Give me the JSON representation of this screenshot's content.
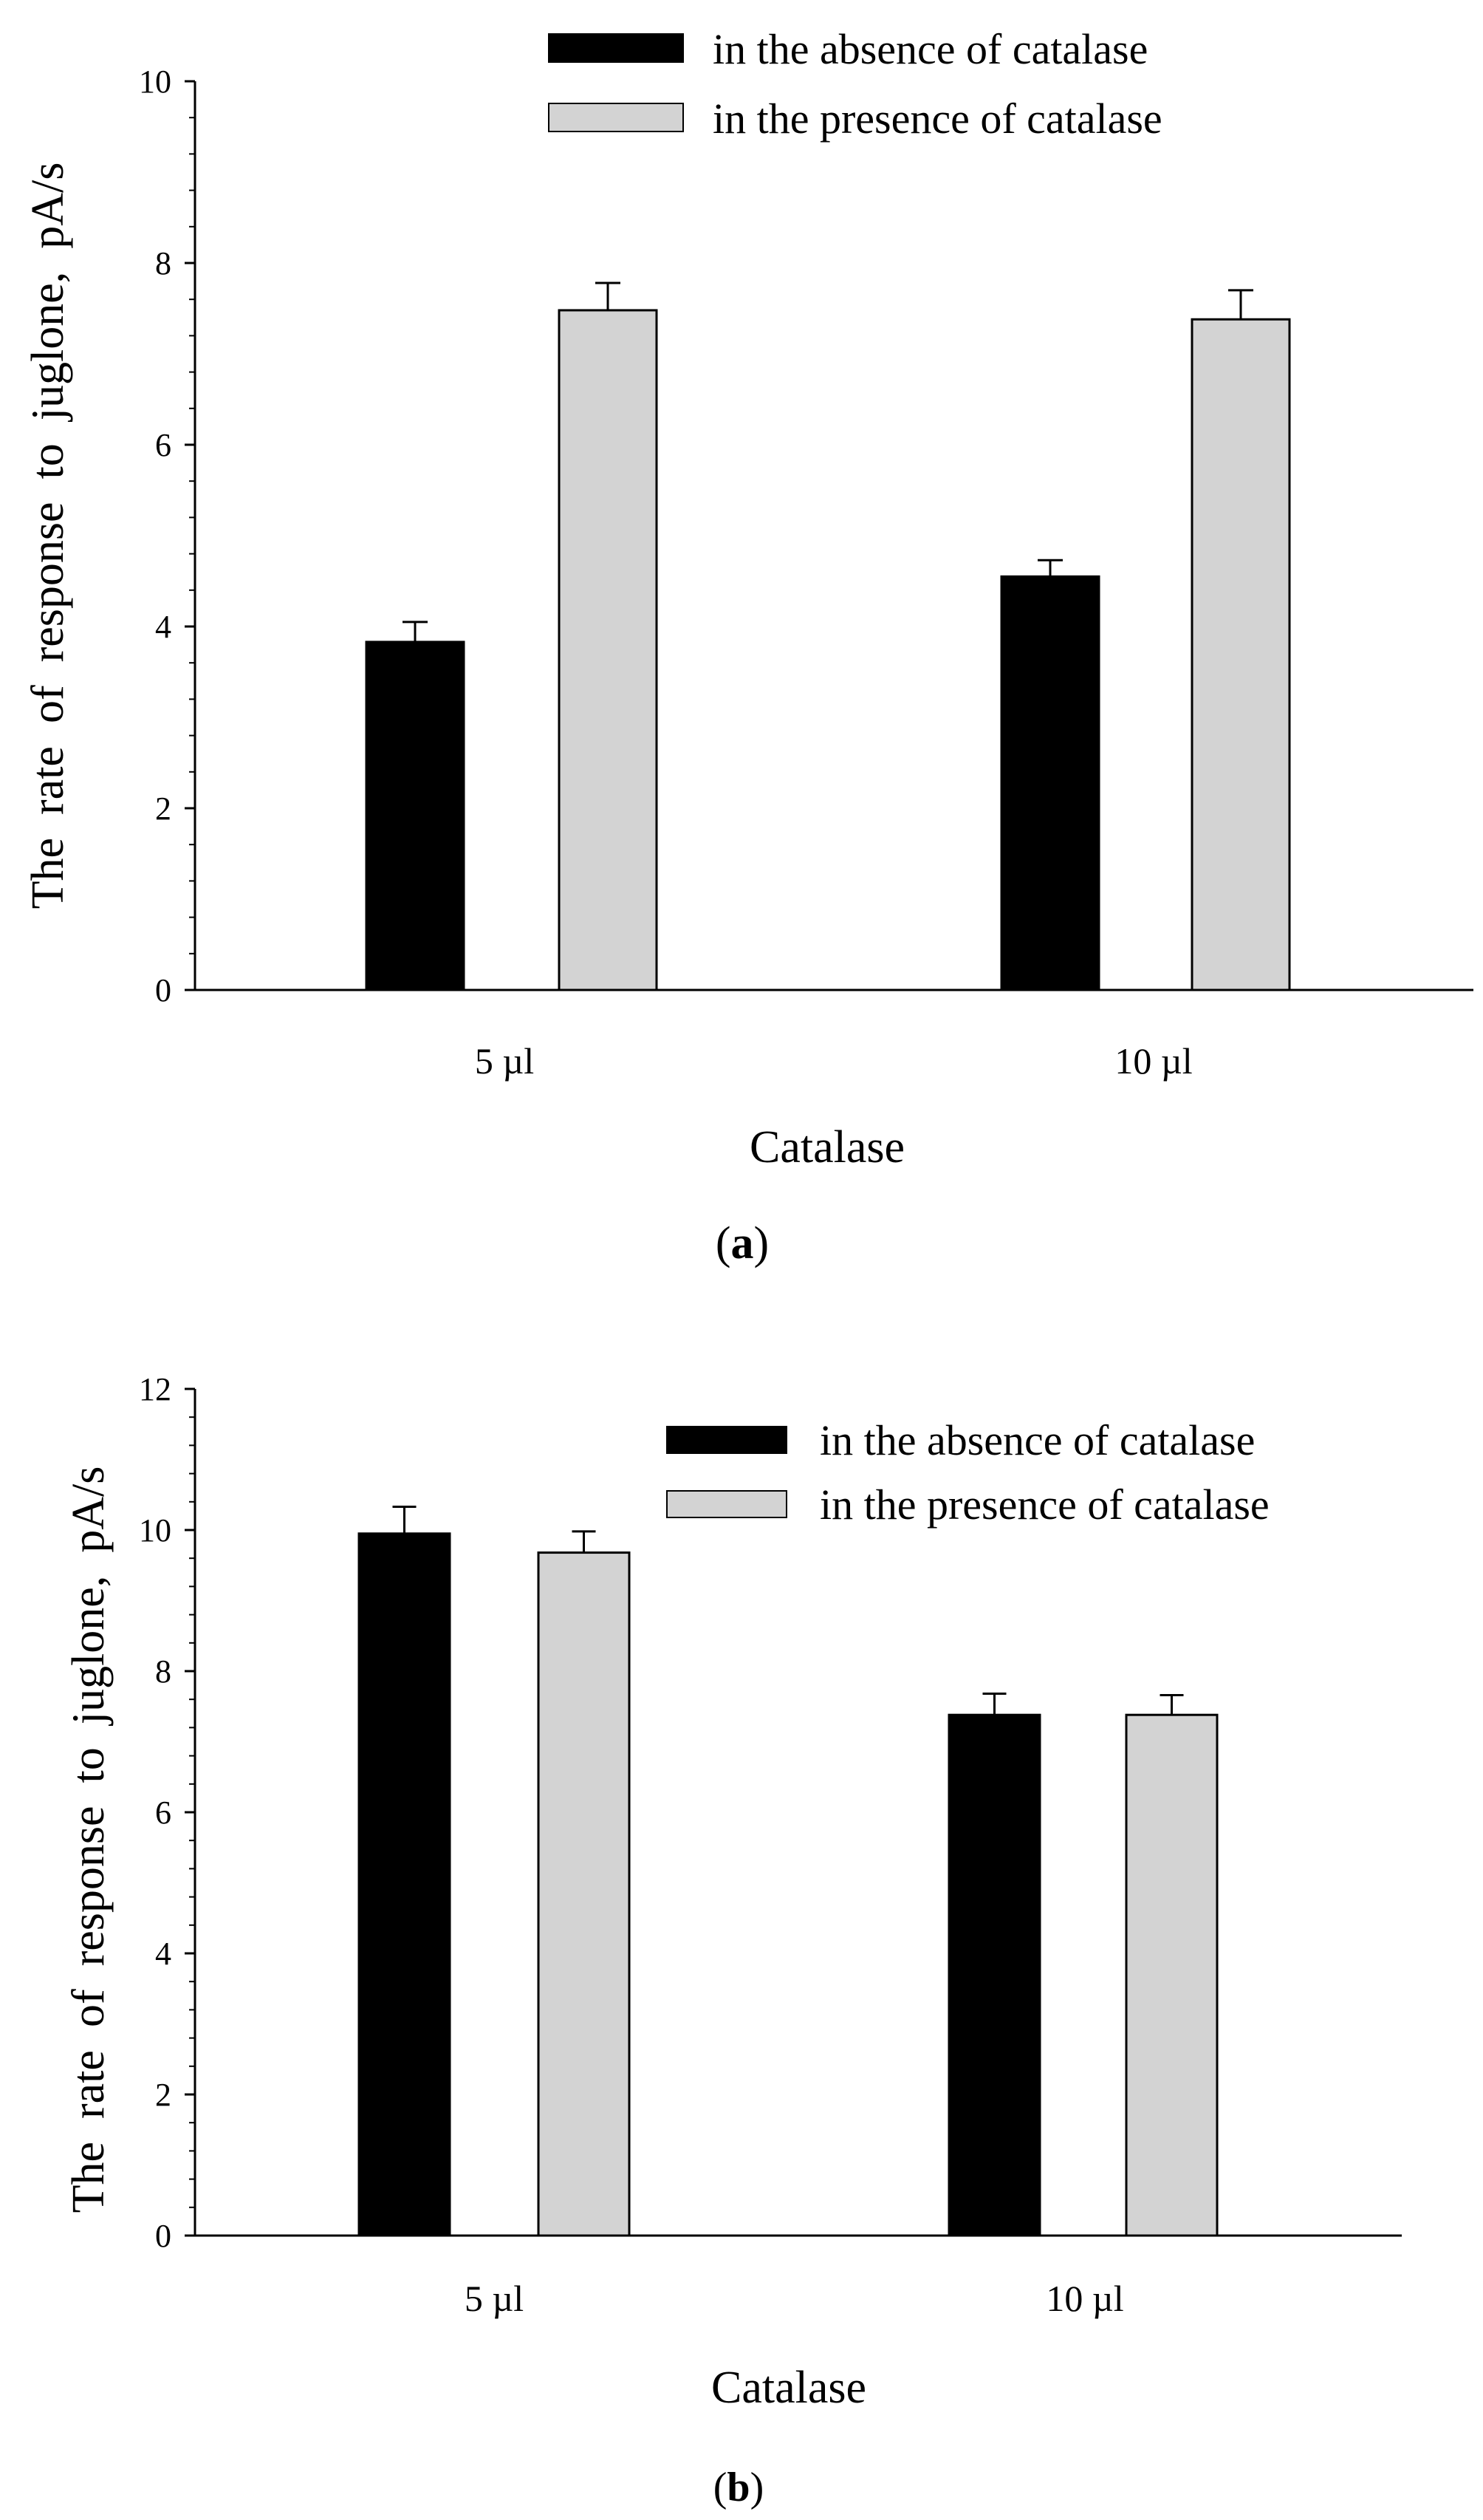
{
  "chart_data": [
    {
      "panel": "(a)",
      "panel_letter": "a",
      "type": "bar",
      "title": "",
      "xlabel": "Catalase",
      "ylabel": "The  rate  of  response  to  juglone,  pA/s",
      "categories": [
        "5 µl",
        "10 µl"
      ],
      "ylim": [
        0,
        10
      ],
      "yticks": [
        0,
        2,
        4,
        6,
        8,
        10
      ],
      "grid": false,
      "legend_position": "top-right",
      "series": [
        {
          "name": "in the absence of catalase",
          "color": "#000000",
          "values": [
            3.83,
            4.55
          ],
          "errors": [
            0.22,
            0.18
          ]
        },
        {
          "name": "in the presence of catalase",
          "color": "#d3d3d3",
          "values": [
            7.48,
            7.38
          ],
          "errors": [
            0.3,
            0.32
          ]
        }
      ]
    },
    {
      "panel": "(b)",
      "panel_letter": "b",
      "type": "bar",
      "title": "",
      "xlabel": "Catalase",
      "ylabel": "The  rate  of  response  to  juglone,  pA/s",
      "categories": [
        "5 µl",
        "10 µl"
      ],
      "ylim": [
        0,
        12
      ],
      "yticks": [
        0,
        2,
        4,
        6,
        8,
        10,
        12
      ],
      "grid": false,
      "legend_position": "top-right",
      "series": [
        {
          "name": "in the absence of catalase",
          "color": "#000000",
          "values": [
            9.95,
            7.38
          ],
          "errors": [
            0.38,
            0.3
          ]
        },
        {
          "name": "in the presence of catalase",
          "color": "#d3d3d3",
          "values": [
            9.68,
            7.38
          ],
          "errors": [
            0.3,
            0.28
          ]
        }
      ]
    }
  ]
}
